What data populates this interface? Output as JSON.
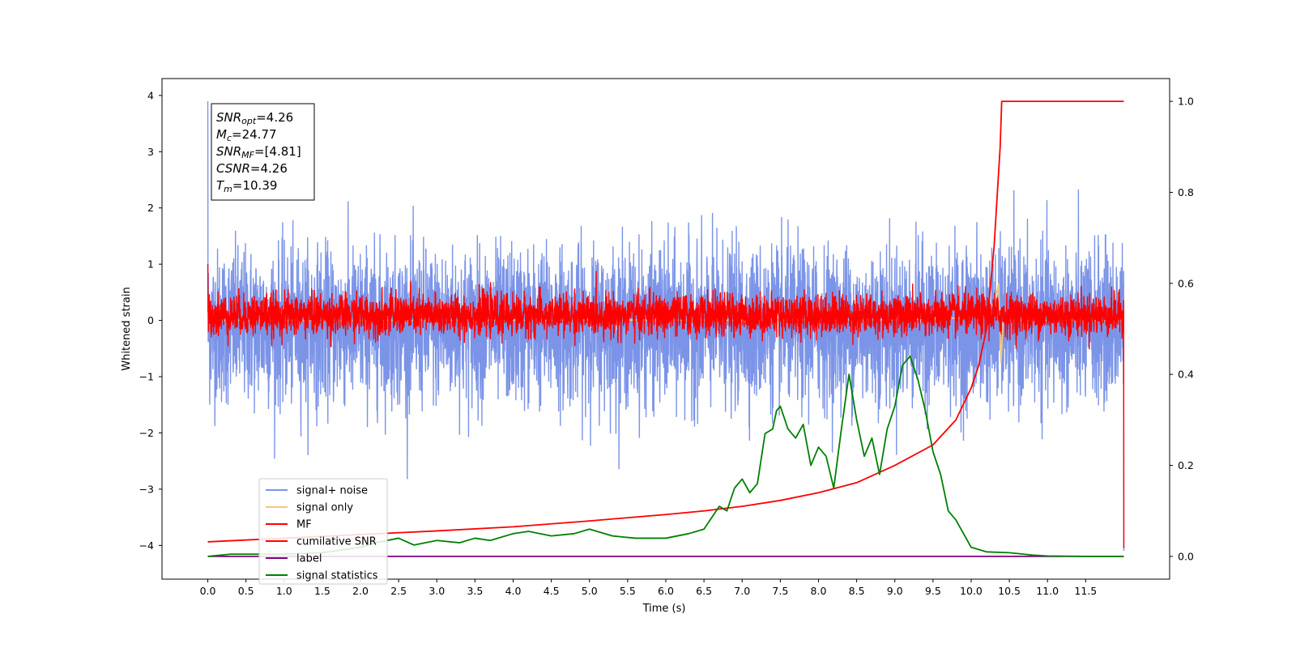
{
  "chart_data": {
    "type": "line",
    "xlabel": "Time (s)",
    "ylabel": "Whitened strain",
    "xlim": [
      -0.6,
      12.6
    ],
    "ylim_left": [
      -4.6,
      4.3
    ],
    "ylim_right": [
      -0.05,
      1.05
    ],
    "x_ticks": [
      0.0,
      0.5,
      1.0,
      1.5,
      2.0,
      2.5,
      3.0,
      3.5,
      4.0,
      4.5,
      5.0,
      5.5,
      6.0,
      6.5,
      7.0,
      7.5,
      8.0,
      8.5,
      9.0,
      9.5,
      10.0,
      10.5,
      11.0,
      11.5
    ],
    "x_tick_labels": [
      "0.0",
      "0.5",
      "1.0",
      "1.5",
      "2.0",
      "2.5",
      "3.0",
      "3.5",
      "4.0",
      "4.5",
      "5.0",
      "5.5",
      "6.0",
      "6.5",
      "7.0",
      "7.5",
      "8.0",
      "8.5",
      "9.0",
      "9.5",
      "10.0",
      "10.5",
      "11.0",
      "11.5"
    ],
    "y_left_ticks": [
      4,
      3,
      2,
      1,
      0,
      -1,
      -2,
      -3,
      -4
    ],
    "y_left_tick_labels": [
      "4",
      "3",
      "2",
      "1",
      "0",
      "−1",
      "−2",
      "−3",
      "−4"
    ],
    "y_right_ticks": [
      1.0,
      0.8,
      0.6,
      0.4,
      0.2,
      0.0
    ],
    "y_right_tick_labels": [
      "1.0",
      "0.8",
      "0.6",
      "0.4",
      "0.2",
      "0.0"
    ],
    "grid": false,
    "legend_placement": "lower-left",
    "series": [
      {
        "name": "signal+ noise",
        "axis": "left",
        "color": "#7b94e8",
        "kind": "noise",
        "x_range": [
          0,
          12.0
        ],
        "center": -0.2,
        "typical_band": [
          -1.6,
          1.4
        ],
        "peak_range": [
          -4.1,
          3.9
        ]
      },
      {
        "name": "signal only",
        "axis": "left",
        "color": "#f5c77e",
        "kind": "chirp",
        "x": [
          0,
          9.0,
          10.0,
          10.3,
          10.36,
          10.39,
          10.42,
          12.0
        ],
        "y": [
          0,
          0.01,
          0.05,
          0.3,
          0.65,
          -0.75,
          0.0,
          0.0
        ]
      },
      {
        "name": "MF",
        "axis": "left",
        "color": "#ff0000",
        "kind": "noise",
        "x_range": [
          0,
          12.0
        ],
        "center": 0.0,
        "typical_band": [
          -0.3,
          0.5
        ],
        "peak_range": [
          -4.05,
          1.0
        ]
      },
      {
        "name": "cumilative SNR",
        "axis": "right",
        "color": "#ff0000",
        "x": [
          0,
          1,
          2,
          3,
          4,
          5,
          6,
          6.5,
          7,
          7.5,
          8,
          8.5,
          9,
          9.5,
          9.8,
          10.0,
          10.1,
          10.2,
          10.3,
          10.38,
          10.4,
          11.0,
          12.0
        ],
        "y": [
          0.032,
          0.04,
          0.048,
          0.056,
          0.065,
          0.078,
          0.092,
          0.1,
          0.11,
          0.123,
          0.14,
          0.162,
          0.2,
          0.245,
          0.3,
          0.37,
          0.42,
          0.5,
          0.68,
          0.9,
          1.0,
          1.0,
          1.0
        ]
      },
      {
        "name": "label",
        "axis": "right",
        "color": "#800080",
        "x": [
          0,
          12.0
        ],
        "y": [
          0,
          0
        ]
      },
      {
        "name": "signal statistics",
        "axis": "right",
        "color": "#008000",
        "x": [
          0,
          0.3,
          0.6,
          1.0,
          1.5,
          2.0,
          2.2,
          2.5,
          2.7,
          3.0,
          3.3,
          3.5,
          3.7,
          4.0,
          4.2,
          4.5,
          4.8,
          5.0,
          5.3,
          5.6,
          6.0,
          6.3,
          6.5,
          6.7,
          6.8,
          6.9,
          7.0,
          7.1,
          7.2,
          7.3,
          7.4,
          7.45,
          7.5,
          7.6,
          7.7,
          7.8,
          7.9,
          8.0,
          8.1,
          8.2,
          8.3,
          8.4,
          8.5,
          8.6,
          8.7,
          8.8,
          8.9,
          9.0,
          9.1,
          9.2,
          9.3,
          9.4,
          9.5,
          9.6,
          9.7,
          9.8,
          9.9,
          10.0,
          10.2,
          10.5,
          10.8,
          11.0,
          11.5,
          12.0
        ],
        "y": [
          0,
          0.005,
          0.005,
          0.005,
          0.008,
          0.02,
          0.03,
          0.04,
          0.025,
          0.035,
          0.03,
          0.04,
          0.035,
          0.05,
          0.055,
          0.045,
          0.05,
          0.06,
          0.045,
          0.04,
          0.04,
          0.05,
          0.06,
          0.11,
          0.1,
          0.15,
          0.17,
          0.14,
          0.16,
          0.27,
          0.28,
          0.32,
          0.33,
          0.28,
          0.26,
          0.29,
          0.2,
          0.24,
          0.22,
          0.15,
          0.28,
          0.4,
          0.3,
          0.22,
          0.26,
          0.18,
          0.28,
          0.33,
          0.42,
          0.44,
          0.39,
          0.32,
          0.23,
          0.18,
          0.1,
          0.08,
          0.05,
          0.02,
          0.01,
          0.008,
          0.003,
          0.001,
          0.0,
          0.0
        ]
      }
    ],
    "annotations": {
      "stats_box": [
        {
          "var": "SNR",
          "sub": "opt",
          "value": "=4.26"
        },
        {
          "var": "M",
          "sub": "c",
          "value": "=24.77"
        },
        {
          "var": "SNR",
          "sub": "MF",
          "value": "=[4.81]"
        },
        {
          "var": "CSNR",
          "sub": "",
          "value": "=4.26"
        },
        {
          "var": "T",
          "sub": "m",
          "value": "=10.39"
        }
      ]
    }
  }
}
